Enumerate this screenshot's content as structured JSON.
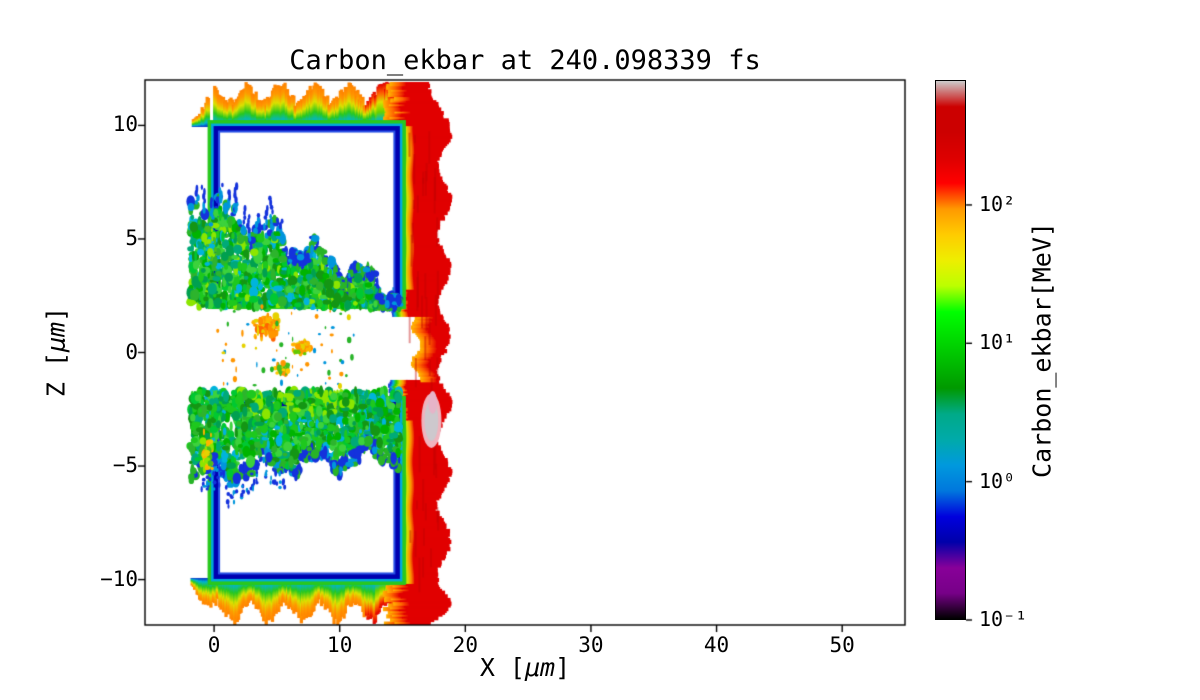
{
  "figure": {
    "xlabel": {
      "pre": "X [",
      "unit": "μm",
      "post": "]"
    },
    "ylabel": {
      "pre": "Z [",
      "unit": "μm",
      "post": "]"
    }
  },
  "chart_data": {
    "type": "heatmap",
    "title": "Carbon_ekbar at 240.098339 fs",
    "quantity": "Carbon_ekbar",
    "time_fs": 240.098339,
    "xlabel": "X [μm]",
    "ylabel": "Z [μm]",
    "xlim": [
      -5.5,
      55
    ],
    "ylim": [
      -12,
      12
    ],
    "xticks": [
      0,
      10,
      20,
      30,
      40,
      50
    ],
    "xtick_labels": [
      "0",
      "10",
      "20",
      "30",
      "40",
      "50"
    ],
    "yticks": [
      -10,
      -5,
      0,
      5,
      10
    ],
    "ytick_labels": [
      "−10",
      "−5",
      "0",
      "5",
      "10"
    ],
    "grid": false,
    "colorbar": {
      "label": "Carbon_ekbar[MeV]",
      "scale": "log",
      "vmin": 0.1,
      "vmax": 800,
      "tick_values": [
        0.1,
        1,
        10,
        100
      ],
      "tick_labels": [
        "10⁻¹",
        "10⁰",
        "10¹",
        "10²"
      ],
      "colormap": "nipy_spectral",
      "stops": [
        [
          0.0,
          "#000000"
        ],
        [
          0.048,
          "#770088"
        ],
        [
          0.095,
          "#880099"
        ],
        [
          0.143,
          "#0000aa"
        ],
        [
          0.19,
          "#0000dd"
        ],
        [
          0.238,
          "#0077dd"
        ],
        [
          0.286,
          "#0099dd"
        ],
        [
          0.333,
          "#00aaaa"
        ],
        [
          0.381,
          "#00aa88"
        ],
        [
          0.429,
          "#009900"
        ],
        [
          0.476,
          "#00bb00"
        ],
        [
          0.524,
          "#00dd00"
        ],
        [
          0.571,
          "#00ff00"
        ],
        [
          0.619,
          "#bbff00"
        ],
        [
          0.667,
          "#eeee00"
        ],
        [
          0.714,
          "#ffcc00"
        ],
        [
          0.762,
          "#ff9900"
        ],
        [
          0.81,
          "#ff0000"
        ],
        [
          0.857,
          "#dd0000"
        ],
        [
          0.905,
          "#cc0000"
        ],
        [
          0.952,
          "#cc0000"
        ],
        [
          1.0,
          "#cccccc"
        ]
      ]
    },
    "features": {
      "seed": 1337,
      "slabs": [
        {
          "x": [
            0,
            14.75
          ],
          "z": [
            2.2,
            9.95
          ]
        },
        {
          "x": [
            0,
            14.75
          ],
          "z": [
            -9.95,
            -2.2
          ]
        }
      ],
      "shock_front": {
        "x": [
          14.6,
          18.3
        ],
        "z": [
          -11.9,
          11.9
        ],
        "gap_z": [
          -1.2,
          1.7
        ]
      },
      "hot_spot": {
        "x": 17.3,
        "z": -3.0
      },
      "turbulence": {
        "upper": {
          "x": [
            -1.9,
            14.8
          ],
          "z_base": 2.0,
          "z_top_left": 7.0,
          "z_top_right": 2.6
        },
        "lower": {
          "x": [
            -1.9,
            14.8
          ],
          "z_top": -1.7,
          "z_bot_left": -5.6,
          "z_bot_right": -4.6
        },
        "core_clusters": [
          {
            "x": 4.3,
            "z": 1.1,
            "sx": 1.2,
            "sz": 0.5,
            "n": 90,
            "palette": [
              "#ff8c00",
              "#ffb400",
              "#ff6400",
              "#e6d200",
              "#ff9600"
            ]
          },
          {
            "x": 6.9,
            "z": 0.2,
            "sx": 0.7,
            "sz": 0.35,
            "n": 40,
            "palette": [
              "#ff9600",
              "#e6d200",
              "#64c800",
              "#ffb400"
            ]
          },
          {
            "x": 5.4,
            "z": -0.7,
            "sx": 0.6,
            "sz": 0.3,
            "n": 30,
            "palette": [
              "#ff9600",
              "#ffc800",
              "#46be1e"
            ]
          },
          {
            "x": -0.6,
            "z": -4.5,
            "sx": 0.5,
            "sz": 0.9,
            "n": 50,
            "palette": [
              "#e6d200",
              "#ffb400",
              "#8ce600",
              "#46be1e"
            ]
          },
          {
            "x": -0.3,
            "z": 4.6,
            "sx": 0.4,
            "sz": 0.8,
            "n": 40,
            "palette": [
              "#46be1e",
              "#8ce600",
              "#00b4dc"
            ]
          }
        ]
      }
    }
  }
}
